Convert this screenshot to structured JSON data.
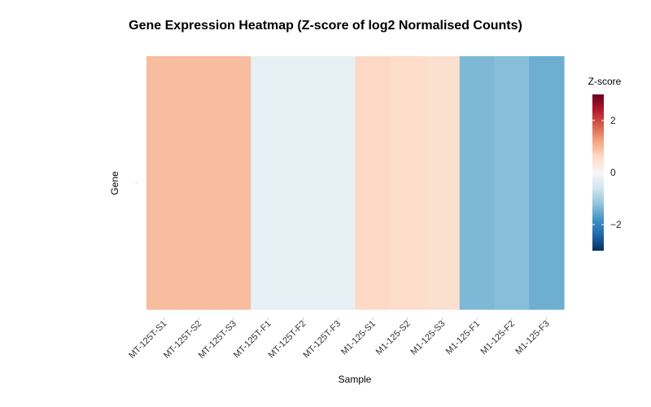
{
  "chart_data": {
    "type": "heatmap",
    "title": "Gene Expression Heatmap (Z-score of log2 Normalised Counts)",
    "xlabel": "Sample",
    "ylabel": "Gene",
    "samples": [
      "MT-125T-S1",
      "MT-125T-S2",
      "MT-125T-S3",
      "MT-125T-F1",
      "MT-125T-F2",
      "MT-125T-F3",
      "M1-125-S1",
      "M1-125-S2",
      "M1-125-S3",
      "M1-125-F1",
      "M1-125-F2",
      "M1-125-F3"
    ],
    "genes": [
      ""
    ],
    "values": [
      [
        0.95,
        0.95,
        0.95,
        -0.25,
        -0.25,
        -0.25,
        0.62,
        0.58,
        0.5,
        -1.35,
        -1.28,
        -1.48
      ]
    ],
    "legend": {
      "title": "Z-score",
      "range": [
        -3,
        3
      ],
      "ticks": [
        2,
        0,
        -2
      ],
      "tick_labels": [
        "2",
        "0",
        "−2"
      ],
      "placement": "right",
      "colors": [
        "#053061",
        "#2166ac",
        "#4393c3",
        "#92c5de",
        "#d1e5f0",
        "#f7f7f7",
        "#fddbc7",
        "#f4a582",
        "#d6604d",
        "#b2182b",
        "#67001f"
      ]
    },
    "grid": false
  }
}
